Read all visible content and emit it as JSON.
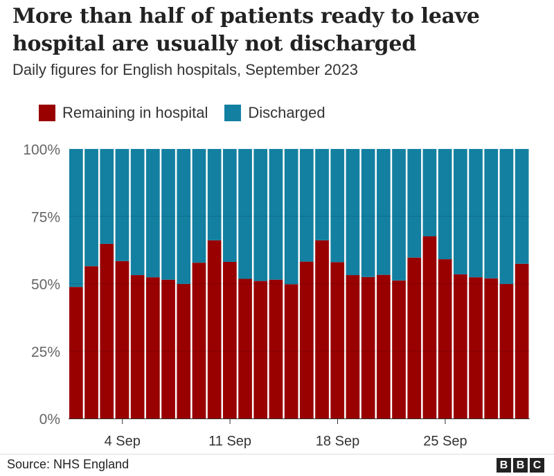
{
  "chart_data": {
    "type": "bar",
    "stacked": true,
    "title": "More than half of patients ready to leave hospital are usually not discharged",
    "subtitle": "Daily figures for English hospitals, September 2023",
    "categories": [
      "1 Sep",
      "2 Sep",
      "3 Sep",
      "4 Sep",
      "5 Sep",
      "6 Sep",
      "7 Sep",
      "8 Sep",
      "9 Sep",
      "10 Sep",
      "11 Sep",
      "12 Sep",
      "13 Sep",
      "14 Sep",
      "15 Sep",
      "16 Sep",
      "17 Sep",
      "18 Sep",
      "19 Sep",
      "20 Sep",
      "21 Sep",
      "22 Sep",
      "23 Sep",
      "24 Sep",
      "25 Sep",
      "26 Sep",
      "27 Sep",
      "28 Sep",
      "29 Sep",
      "30 Sep"
    ],
    "x_tick_labels": [
      "4 Sep",
      "11 Sep",
      "18 Sep",
      "25 Sep"
    ],
    "y_tick_labels": [
      "0%",
      "25%",
      "50%",
      "75%",
      "100%"
    ],
    "ylim": [
      0,
      100
    ],
    "grid": true,
    "legend_position": "top-left",
    "series": [
      {
        "name": "Remaining in hospital",
        "color": "#990000",
        "values": [
          48.8,
          56.5,
          64.8,
          58.4,
          53.2,
          52.4,
          51.5,
          49.9,
          57.8,
          66.1,
          58.1,
          51.8,
          51.0,
          51.5,
          49.8,
          58.2,
          66.1,
          58.0,
          53.2,
          52.5,
          53.3,
          51.2,
          59.7,
          67.6,
          59.1,
          53.5,
          52.4,
          52.0,
          49.9,
          57.4
        ]
      },
      {
        "name": "Discharged",
        "color": "#1380a1",
        "values": [
          51.2,
          43.5,
          35.2,
          41.6,
          46.8,
          47.6,
          48.5,
          50.1,
          42.2,
          33.9,
          41.9,
          48.2,
          49.0,
          48.5,
          50.2,
          41.8,
          33.9,
          42.0,
          46.8,
          47.5,
          46.7,
          48.8,
          40.3,
          32.4,
          40.9,
          46.5,
          47.6,
          48.0,
          50.1,
          42.6
        ]
      }
    ]
  },
  "source": "Source: NHS England",
  "logo": [
    "B",
    "B",
    "C"
  ]
}
